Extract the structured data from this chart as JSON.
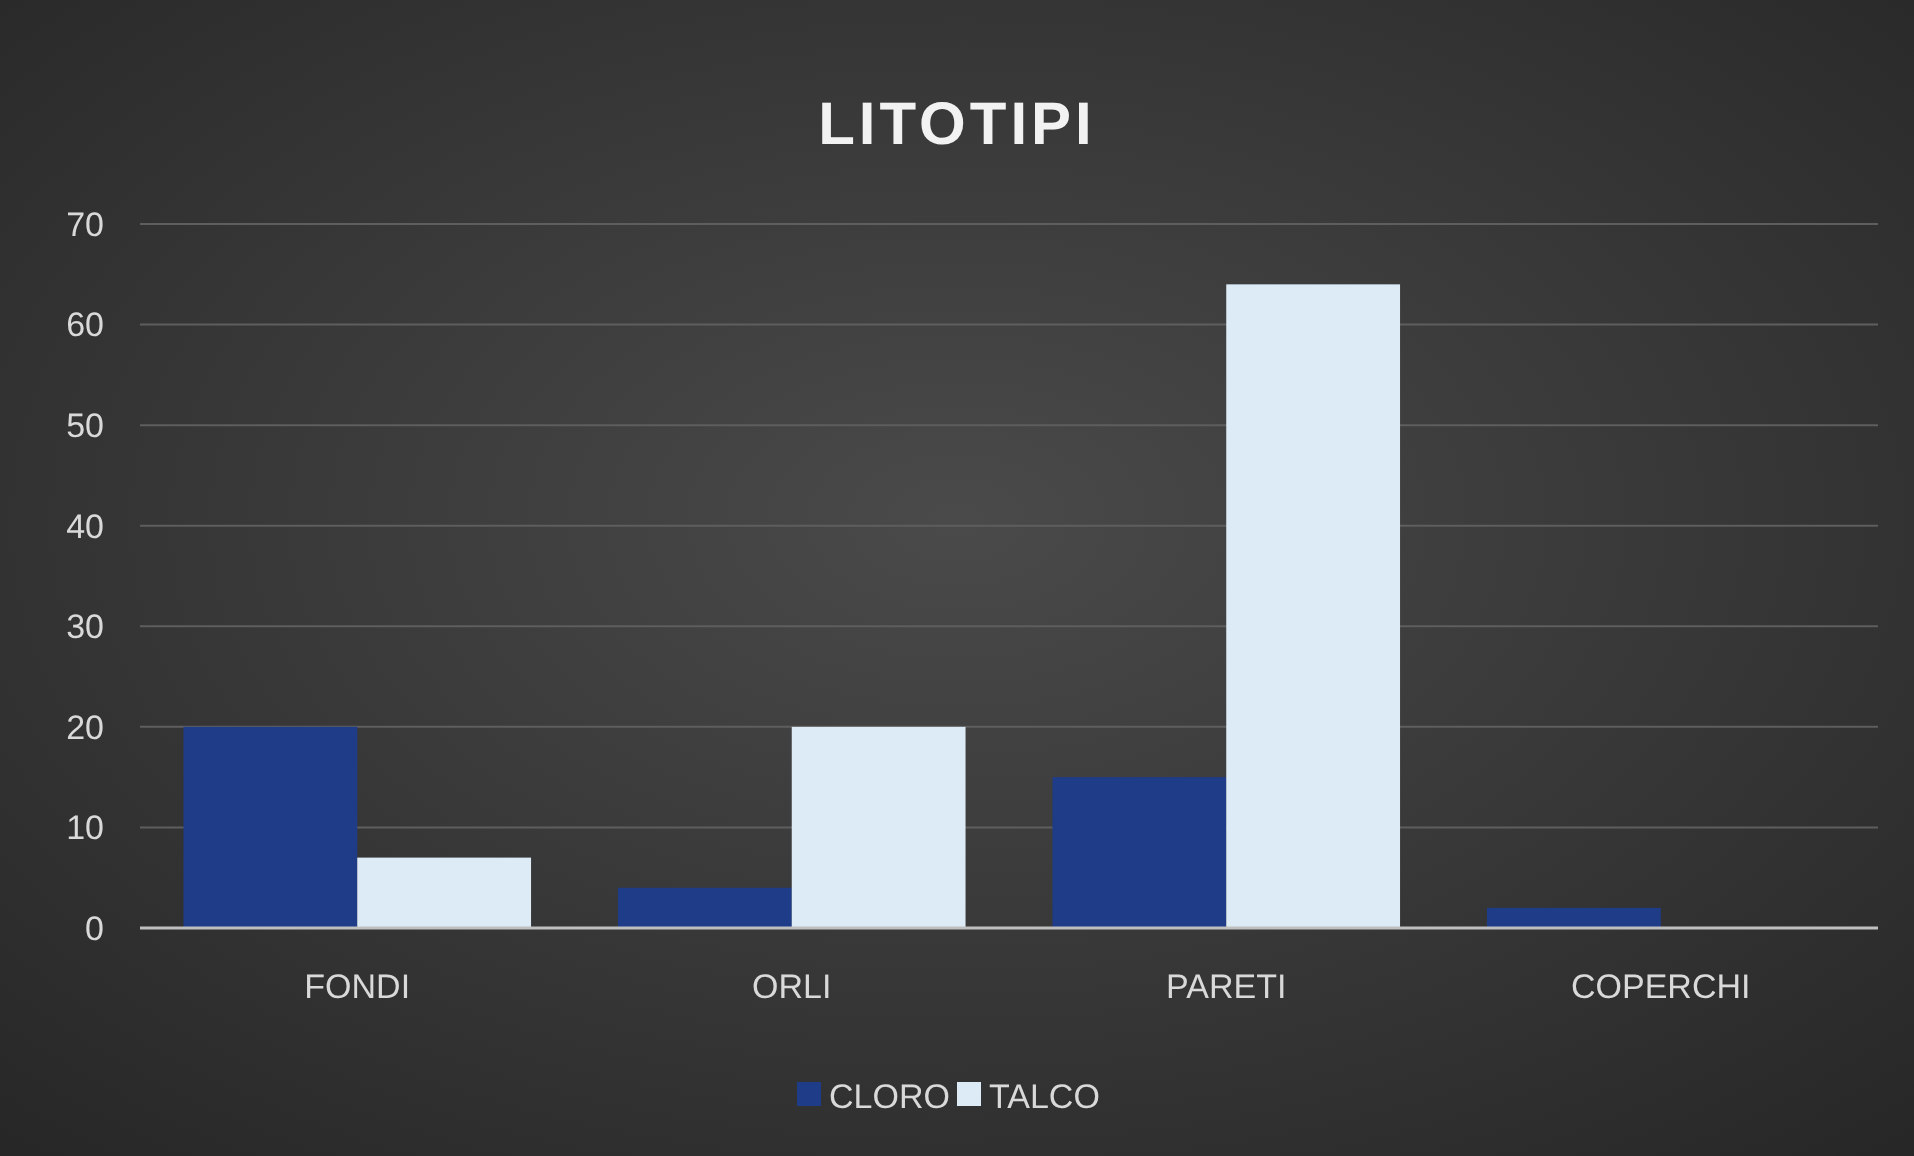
{
  "chart_data": {
    "type": "bar",
    "title": "LITOTIPI",
    "categories": [
      "FONDI",
      "ORLI",
      "PARETI",
      "COPERCHI"
    ],
    "series": [
      {
        "name": "CLORO",
        "color": "#1f3c88",
        "values": [
          20,
          4,
          15,
          2
        ]
      },
      {
        "name": "TALCO",
        "color": "#ddebf7",
        "values": [
          7,
          20,
          64,
          0
        ]
      }
    ],
    "ylim": [
      0,
      70
    ],
    "yticks": [
      0,
      10,
      20,
      30,
      40,
      50,
      60,
      70
    ],
    "grid": "y",
    "legend": "bottom"
  }
}
